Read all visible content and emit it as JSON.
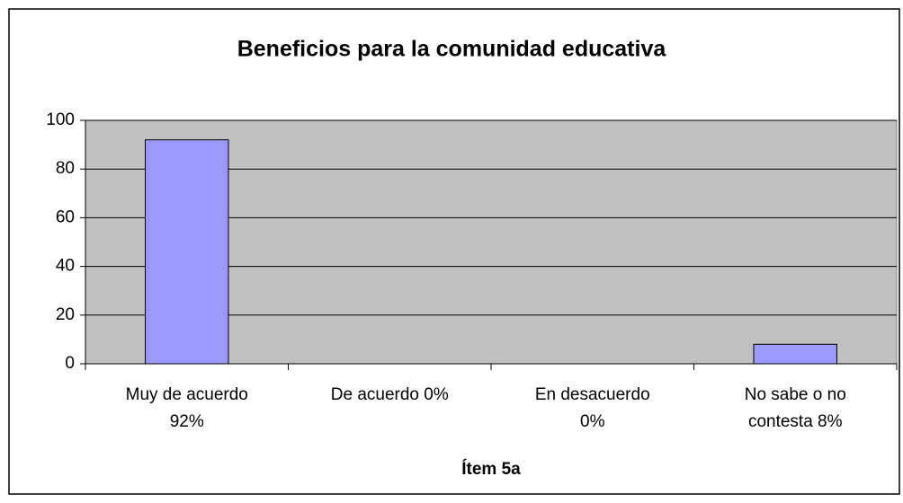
{
  "chart_data": {
    "type": "bar",
    "title": "Beneficios para la comunidad educativa",
    "x_label": "Ítem 5a",
    "categories": [
      "Muy de acuerdo 92%",
      "De acuerdo 0%",
      "En desacuerdo 0%",
      "No sabe o no contesta 8%"
    ],
    "values": [
      92,
      0,
      0,
      8
    ],
    "color": "#9999ff",
    "ylim": [
      0,
      100
    ],
    "yticks": [
      0,
      20,
      40,
      60,
      80,
      100
    ],
    "grid": true
  }
}
